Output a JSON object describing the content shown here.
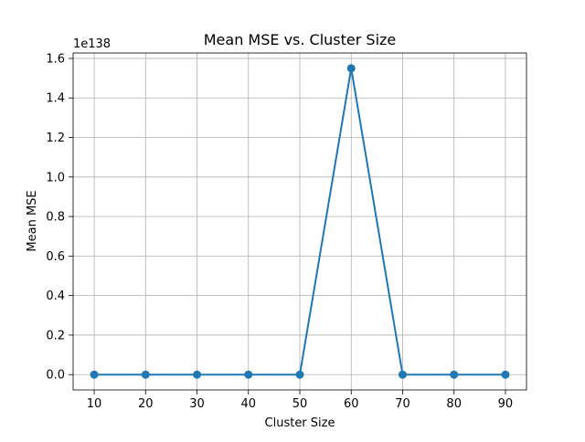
{
  "chart_data": {
    "type": "line",
    "title": "Mean MSE vs. Cluster Size",
    "xlabel": "Cluster Size",
    "ylabel": "Mean MSE",
    "y_offset_label": "1e138",
    "x": [
      10,
      20,
      30,
      40,
      50,
      60,
      70,
      80,
      90
    ],
    "series": [
      {
        "values": [
          0,
          0,
          0,
          0,
          0,
          1.55,
          0,
          0,
          0
        ],
        "color": "#1f77b4",
        "marker": "circle"
      }
    ],
    "xlim": [
      5.9,
      94.1
    ],
    "ylim": [
      -0.0775,
      1.6275
    ],
    "x_ticks": [
      10,
      20,
      30,
      40,
      50,
      60,
      70,
      80,
      90
    ],
    "x_tick_labels": [
      "10",
      "20",
      "30",
      "40",
      "50",
      "60",
      "70",
      "80",
      "90"
    ],
    "y_ticks": [
      0.0,
      0.2,
      0.4,
      0.6,
      0.8,
      1.0,
      1.2,
      1.4,
      1.6
    ],
    "y_tick_labels": [
      "0.0",
      "0.2",
      "0.4",
      "0.6",
      "0.8",
      "1.0",
      "1.2",
      "1.4",
      "1.6"
    ],
    "grid": true,
    "legend": false
  }
}
